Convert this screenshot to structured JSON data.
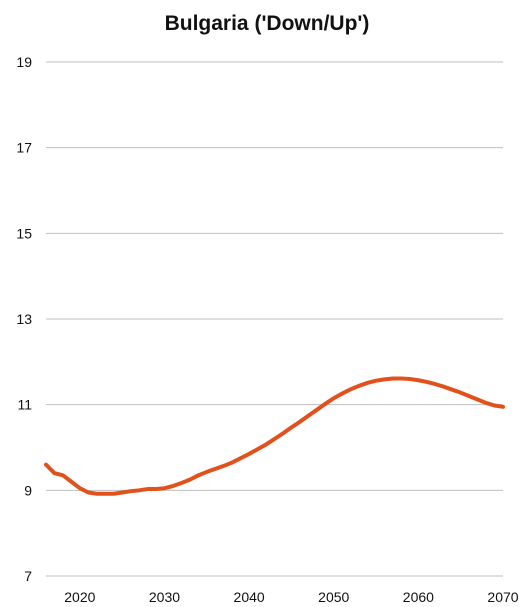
{
  "chart_data": {
    "type": "line",
    "title": "Bulgaria ('Down/Up')",
    "xlabel": "",
    "ylabel": "",
    "xlim": [
      2016,
      2070
    ],
    "ylim": [
      7,
      19
    ],
    "x_ticks": [
      2020,
      2030,
      2040,
      2050,
      2060,
      2070
    ],
    "y_ticks": [
      7,
      9,
      11,
      13,
      15,
      17,
      19
    ],
    "grid": true,
    "legend": "none",
    "line_color": "#E2511C",
    "series": [
      {
        "x": [
          2016,
          2017,
          2018,
          2019,
          2020,
          2021,
          2022,
          2023,
          2024,
          2025,
          2026,
          2027,
          2028,
          2029,
          2030,
          2031,
          2032,
          2033,
          2034,
          2035,
          2036,
          2037,
          2038,
          2039,
          2040,
          2041,
          2042,
          2043,
          2044,
          2045,
          2046,
          2047,
          2048,
          2049,
          2050,
          2051,
          2052,
          2053,
          2054,
          2055,
          2056,
          2057,
          2058,
          2059,
          2060,
          2061,
          2062,
          2063,
          2064,
          2065,
          2066,
          2067,
          2068,
          2069,
          2070
        ],
        "values": [
          9.6,
          9.4,
          9.35,
          9.2,
          9.05,
          8.95,
          8.92,
          8.92,
          8.92,
          8.95,
          8.98,
          9.0,
          9.03,
          9.03,
          9.05,
          9.1,
          9.17,
          9.25,
          9.35,
          9.43,
          9.5,
          9.57,
          9.65,
          9.75,
          9.85,
          9.96,
          10.07,
          10.2,
          10.33,
          10.47,
          10.6,
          10.74,
          10.88,
          11.02,
          11.15,
          11.26,
          11.36,
          11.44,
          11.51,
          11.56,
          11.59,
          11.61,
          11.61,
          11.6,
          11.57,
          11.53,
          11.48,
          11.42,
          11.35,
          11.28,
          11.2,
          11.12,
          11.04,
          10.98,
          10.95
        ]
      }
    ]
  }
}
